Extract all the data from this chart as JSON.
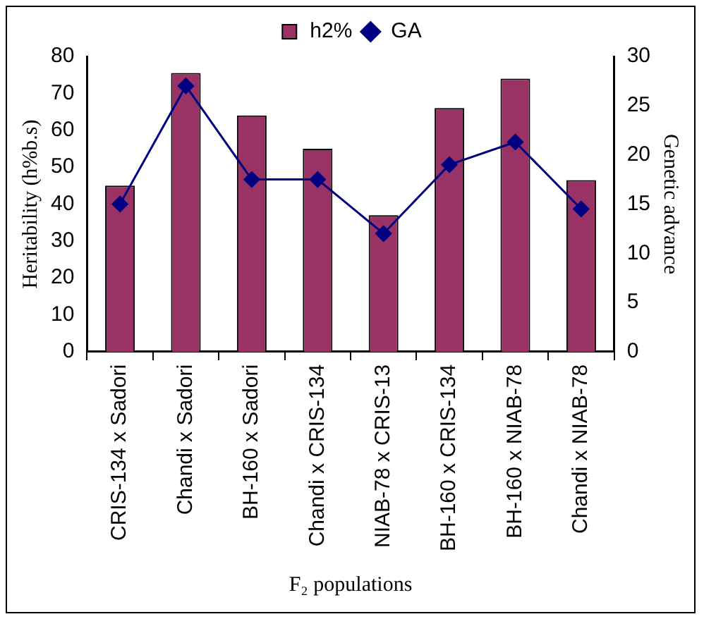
{
  "chart_data": {
    "type": "bar",
    "categories": [
      "CRIS-134 x Sadori",
      "Chandi x Sadori",
      "BH-160 x Sadori",
      "Chandi x CRIS-134",
      "NIAB-78 x CRIS-13",
      "BH-160 x CRIS-134",
      "BH-160 x NIAB-78",
      "Chandi x NIAB-78"
    ],
    "series": [
      {
        "name": "h2%",
        "color": "#993366",
        "values": [
          45,
          75.5,
          64,
          55,
          37,
          66,
          74,
          46.5
        ]
      },
      {
        "name": "GA",
        "type": "line",
        "axis": "y2",
        "color": "#000080",
        "marker": "diamond",
        "values": [
          15,
          27,
          17.5,
          17.5,
          12,
          19,
          21.3,
          14.5
        ]
      }
    ],
    "xlabel": "F₂ populations",
    "ylabel": "Heritability (h%b.s)",
    "y2label": "Genetic advance",
    "ylim": [
      0,
      80
    ],
    "yticks": [
      0,
      10,
      20,
      30,
      40,
      50,
      60,
      70,
      80
    ],
    "y2lim": [
      0,
      30
    ],
    "y2ticks": [
      0,
      5,
      10,
      15,
      20,
      25,
      30
    ],
    "legend": "top",
    "grid": false
  }
}
